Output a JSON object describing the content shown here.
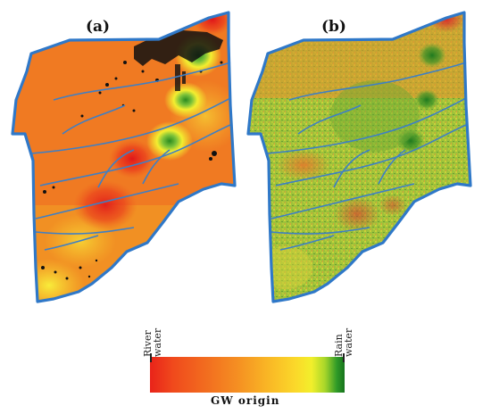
{
  "panels": {
    "a": {
      "label": "(a)"
    },
    "b": {
      "label": "(b)"
    }
  },
  "legend": {
    "title": "GW origin",
    "left_line1": "River",
    "left_line2": "water",
    "right_line1": "Rain",
    "right_line2": "water"
  },
  "colors": {
    "river_water": "#e9231a",
    "mid": "#f58f22",
    "rain_water": "#17741c",
    "river_lines": "#3d7fc6",
    "urban_patches": "#111111"
  }
}
